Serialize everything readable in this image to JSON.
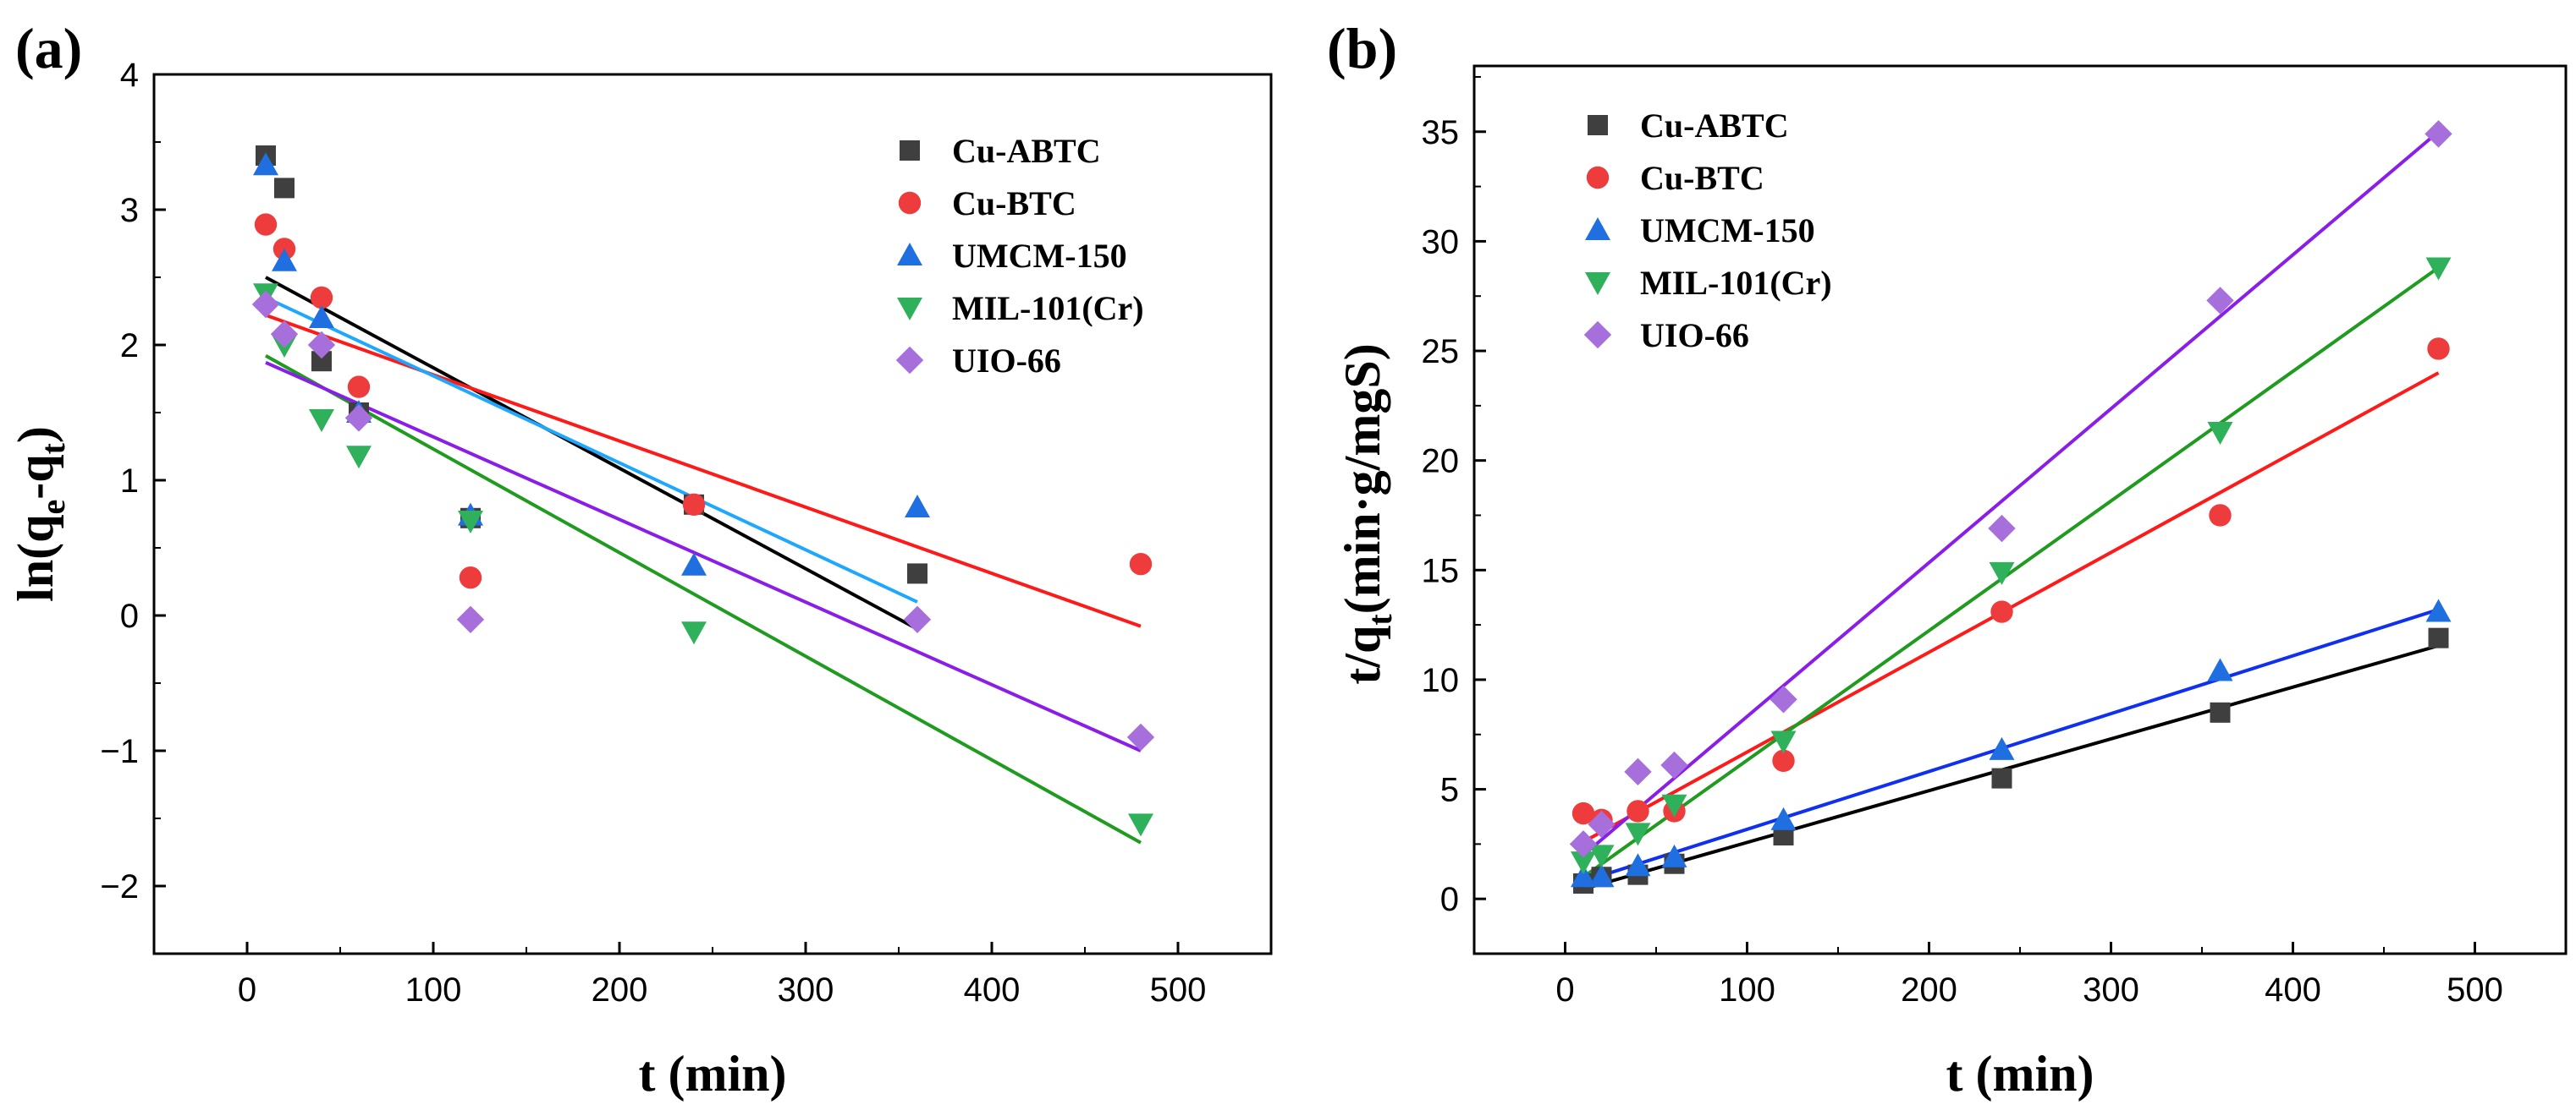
{
  "figure": {
    "panel_a_label": "(a)",
    "panel_b_label": "(b)"
  },
  "colors": {
    "Cu-ABTC": "#3f3f3f",
    "Cu-BTC": "#ee3b3b",
    "UMCM-150": "#1f6fe0",
    "MIL-101(Cr)": "#2fb05a",
    "UIO-66": "#a66fdc"
  },
  "chart_data": [
    {
      "type": "scatter",
      "panel": "(a)",
      "title": "",
      "xlabel": "t (min)",
      "ylabel": "ln(qe-qt)",
      "ylabel_parts": {
        "ln": "ln(q",
        "sub1": "e",
        "mid": "-q",
        "sub2": "t",
        "end": ")"
      },
      "xlim": [
        -50,
        550
      ],
      "ylim": [
        -2.5,
        4
      ],
      "xticks": [
        0,
        100,
        200,
        300,
        400,
        500
      ],
      "xtick_labels": [
        "0",
        "100",
        "200",
        "300",
        "400",
        "500"
      ],
      "yticks": [
        -2,
        -1,
        0,
        1,
        2,
        3,
        4
      ],
      "ytick_labels": [
        "−2",
        "−1",
        "0",
        "1",
        "2",
        "3",
        "4"
      ],
      "legend_position": "top-right",
      "series": [
        {
          "name": "Cu-ABTC",
          "marker": "square",
          "x": [
            10,
            20,
            40,
            60,
            120,
            240,
            360
          ],
          "y": [
            3.4,
            3.16,
            1.88,
            1.5,
            0.72,
            0.82,
            0.31
          ],
          "fit": {
            "x": [
              10,
              360
            ],
            "y": [
              2.5,
              -0.1
            ]
          }
        },
        {
          "name": "Cu-BTC",
          "marker": "circle",
          "x": [
            10,
            20,
            40,
            60,
            120,
            240,
            480
          ],
          "y": [
            2.89,
            2.71,
            2.35,
            1.69,
            0.28,
            0.82,
            0.38
          ],
          "fit": {
            "x": [
              10,
              480
            ],
            "y": [
              2.22,
              -0.08
            ]
          }
        },
        {
          "name": "UMCM-150",
          "marker": "triangle-up",
          "x": [
            10,
            20,
            40,
            60,
            120,
            240,
            360
          ],
          "y": [
            3.33,
            2.62,
            2.2,
            1.5,
            0.74,
            0.37,
            0.8
          ],
          "fit": {
            "x": [
              10,
              360
            ],
            "y": [
              2.35,
              0.1
            ]
          }
        },
        {
          "name": "MIL-101(Cr)",
          "marker": "triangle-down",
          "x": [
            10,
            20,
            40,
            60,
            120,
            240,
            480
          ],
          "y": [
            2.38,
            2.0,
            1.45,
            1.18,
            0.7,
            -0.12,
            -1.54
          ],
          "fit": {
            "x": [
              10,
              480
            ],
            "y": [
              1.92,
              -1.68
            ]
          }
        },
        {
          "name": "UIO-66",
          "marker": "diamond",
          "x": [
            10,
            20,
            40,
            60,
            120,
            360,
            480
          ],
          "y": [
            2.3,
            2.08,
            2.0,
            1.46,
            -0.03,
            -0.03,
            -0.9
          ],
          "fit": {
            "x": [
              10,
              480
            ],
            "y": [
              1.87,
              -1.0
            ]
          }
        }
      ]
    },
    {
      "type": "scatter",
      "panel": "(b)",
      "title": "",
      "xlabel": "t (min)",
      "ylabel": "t/qt(min·g/mgS)",
      "ylabel_parts": {
        "pre": "t/q",
        "sub": "t",
        "post": "(min·g/mgS)"
      },
      "xlim": [
        -50,
        550
      ],
      "ylim": [
        -2.5,
        38
      ],
      "xticks": [
        0,
        100,
        200,
        300,
        400,
        500
      ],
      "xtick_labels": [
        "0",
        "100",
        "200",
        "300",
        "400",
        "500"
      ],
      "yticks": [
        0,
        5,
        10,
        15,
        20,
        25,
        30,
        35
      ],
      "ytick_labels": [
        "0",
        "5",
        "10",
        "15",
        "20",
        "25",
        "30",
        "35"
      ],
      "legend_position": "top-left",
      "series": [
        {
          "name": "Cu-ABTC",
          "marker": "square",
          "x": [
            10,
            20,
            40,
            60,
            120,
            240,
            360,
            480
          ],
          "y": [
            0.7,
            1.0,
            1.1,
            1.6,
            2.9,
            5.5,
            8.5,
            11.9
          ],
          "fit": {
            "x": [
              10,
              480
            ],
            "y": [
              0.45,
              11.55
            ]
          }
        },
        {
          "name": "Cu-BTC",
          "marker": "circle",
          "x": [
            10,
            20,
            40,
            60,
            120,
            240,
            360,
            480
          ],
          "y": [
            3.9,
            3.6,
            4.0,
            4.0,
            6.3,
            13.1,
            17.5,
            25.1
          ],
          "fit": {
            "x": [
              10,
              480
            ],
            "y": [
              2.6,
              24.0
            ]
          }
        },
        {
          "name": "UMCM-150",
          "marker": "triangle-up",
          "x": [
            10,
            20,
            40,
            60,
            120,
            240,
            360,
            480
          ],
          "y": [
            1.0,
            1.0,
            1.5,
            1.9,
            3.6,
            6.8,
            10.4,
            13.1
          ],
          "fit": {
            "x": [
              10,
              480
            ],
            "y": [
              0.8,
              13.2
            ]
          }
        },
        {
          "name": "MIL-101(Cr)",
          "marker": "triangle-down",
          "x": [
            10,
            20,
            40,
            60,
            120,
            240,
            360,
            480
          ],
          "y": [
            1.7,
            2.0,
            3.0,
            4.3,
            7.2,
            14.9,
            21.3,
            28.8
          ],
          "fit": {
            "x": [
              10,
              480
            ],
            "y": [
              1.0,
              28.8
            ]
          }
        },
        {
          "name": "UIO-66",
          "marker": "diamond",
          "x": [
            10,
            20,
            40,
            60,
            120,
            240,
            360,
            480
          ],
          "y": [
            2.5,
            3.4,
            5.8,
            6.1,
            9.1,
            16.9,
            27.3,
            34.9
          ],
          "fit": {
            "x": [
              10,
              480
            ],
            "y": [
              2.0,
              35.0
            ]
          }
        }
      ]
    }
  ]
}
